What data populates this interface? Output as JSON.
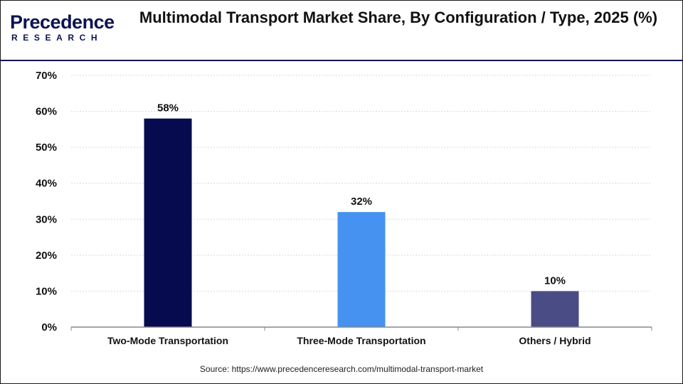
{
  "header": {
    "logo_word": "Precedence",
    "logo_sub": "RESEARCH",
    "title": "Multimodal Transport Market Share, By Configuration / Type, 2025 (%)"
  },
  "source": "Source: https://www.precedenceresearch.com/multimodal-transport-market",
  "colors": {
    "brand": "#0b1450",
    "bars": [
      "#060a4e",
      "#4592f0",
      "#4a4c85"
    ],
    "grid": "#d9d9d9",
    "axis": "#888888"
  },
  "chart_data": {
    "type": "bar",
    "title": "Multimodal Transport Market Share, By Configuration / Type, 2025 (%)",
    "categories": [
      "Two-Mode Transportation",
      "Three-Mode Transportation",
      "Others / Hybrid"
    ],
    "values": [
      58,
      32,
      10
    ],
    "data_labels": [
      "58%",
      "32%",
      "10%"
    ],
    "y_ticks": [
      "0%",
      "10%",
      "20%",
      "30%",
      "40%",
      "50%",
      "60%",
      "70%"
    ],
    "ylim": [
      0,
      70
    ],
    "xlabel": "",
    "ylabel": "",
    "grid": true,
    "legend": "none"
  }
}
